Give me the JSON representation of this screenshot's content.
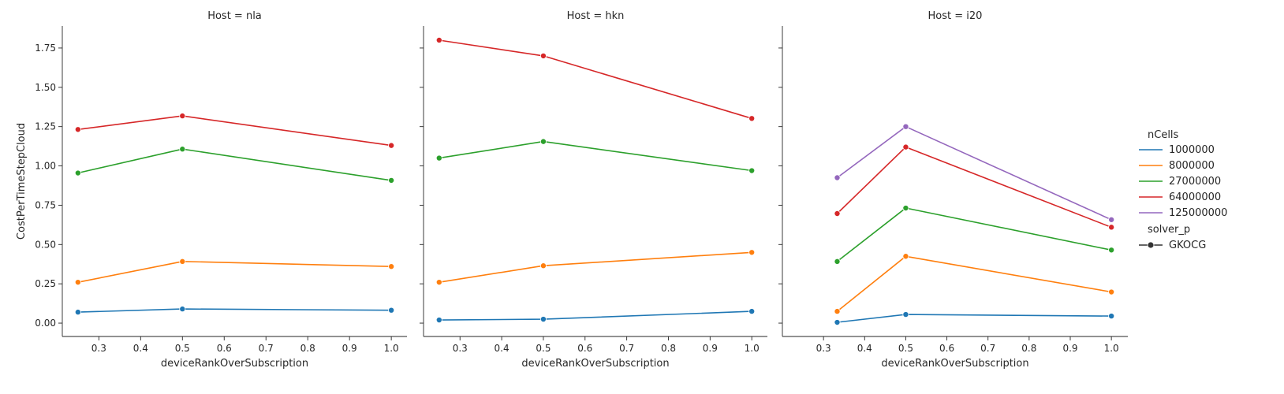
{
  "chart_data": {
    "type": "line",
    "xlabel": "deviceRankOverSubscription",
    "ylabel": "CostPerTimeStepCloud",
    "ylim": [
      -0.085,
      1.89
    ],
    "yticks": [
      0.0,
      0.25,
      0.5,
      0.75,
      1.0,
      1.25,
      1.5,
      1.75
    ],
    "ytick_labels": [
      "0.00",
      "0.25",
      "0.50",
      "0.75",
      "1.00",
      "1.25",
      "1.50",
      "1.75"
    ],
    "xticks": [
      0.3,
      0.4,
      0.5,
      0.6,
      0.7,
      0.8,
      0.9,
      1.0
    ],
    "xtick_labels": [
      "0.3",
      "0.4",
      "0.5",
      "0.6",
      "0.7",
      "0.8",
      "0.9",
      "1.0"
    ],
    "grid": false,
    "legend": {
      "placement": "right",
      "hue_title": "nCells",
      "style_title": "solver_p",
      "style_entry": "GKOCG"
    },
    "colors": {
      "1000000": "#1f77b4",
      "8000000": "#ff7f0e",
      "27000000": "#2ca02c",
      "64000000": "#d62728",
      "125000000": "#9467bd"
    },
    "hue_levels": [
      "1000000",
      "8000000",
      "27000000",
      "64000000",
      "125000000"
    ],
    "panels": [
      {
        "title": "Host = nla",
        "xlim": [
          0.2125,
          1.0375
        ],
        "series": [
          {
            "name": "1000000",
            "x": [
              0.25,
              0.5,
              1.0
            ],
            "y": [
              0.07,
              0.09,
              0.082
            ]
          },
          {
            "name": "8000000",
            "x": [
              0.25,
              0.5,
              1.0
            ],
            "y": [
              0.26,
              0.392,
              0.36
            ]
          },
          {
            "name": "27000000",
            "x": [
              0.25,
              0.5,
              1.0
            ],
            "y": [
              0.955,
              1.107,
              0.908
            ]
          },
          {
            "name": "64000000",
            "x": [
              0.25,
              0.5,
              1.0
            ],
            "y": [
              1.232,
              1.318,
              1.13
            ]
          }
        ]
      },
      {
        "title": "Host = hkn",
        "xlim": [
          0.2125,
          1.0375
        ],
        "series": [
          {
            "name": "1000000",
            "x": [
              0.25,
              0.5,
              1.0
            ],
            "y": [
              0.02,
              0.025,
              0.075
            ]
          },
          {
            "name": "8000000",
            "x": [
              0.25,
              0.5,
              1.0
            ],
            "y": [
              0.26,
              0.365,
              0.45
            ]
          },
          {
            "name": "27000000",
            "x": [
              0.25,
              0.5,
              1.0
            ],
            "y": [
              1.05,
              1.155,
              0.97
            ]
          },
          {
            "name": "64000000",
            "x": [
              0.25,
              0.5,
              1.0
            ],
            "y": [
              1.8,
              1.7,
              1.302
            ]
          }
        ]
      },
      {
        "title": "Host = i20",
        "xlim": [
          0.2,
          1.04
        ],
        "series": [
          {
            "name": "1000000",
            "x": [
              0.3333,
              0.5,
              1.0
            ],
            "y": [
              0.005,
              0.055,
              0.045
            ]
          },
          {
            "name": "8000000",
            "x": [
              0.3333,
              0.5,
              1.0
            ],
            "y": [
              0.075,
              0.425,
              0.198
            ]
          },
          {
            "name": "27000000",
            "x": [
              0.3333,
              0.5,
              1.0
            ],
            "y": [
              0.392,
              0.732,
              0.465
            ]
          },
          {
            "name": "64000000",
            "x": [
              0.3333,
              0.5,
              1.0
            ],
            "y": [
              0.697,
              1.12,
              0.61
            ]
          },
          {
            "name": "125000000",
            "x": [
              0.3333,
              0.5,
              1.0
            ],
            "y": [
              0.925,
              1.25,
              0.658
            ]
          }
        ]
      }
    ]
  }
}
